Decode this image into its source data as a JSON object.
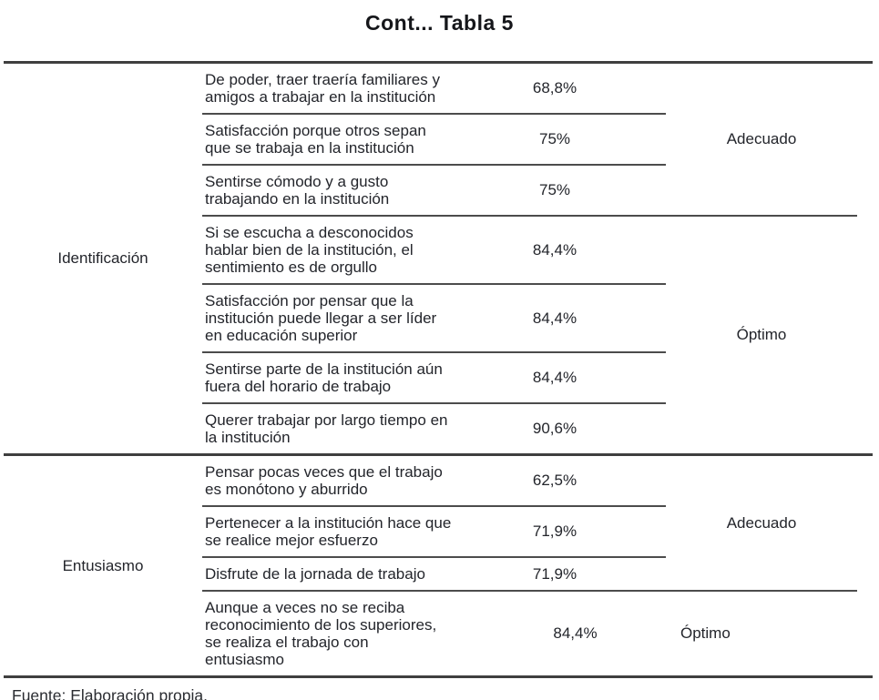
{
  "page": {
    "title": "Cont... Tabla 5",
    "source_note": "Fuente: Elaboración propia."
  },
  "colors": {
    "text": "#23252b",
    "rule_thick": "#3f3f3f",
    "rule_thin": "#4c4c4c",
    "background": "#ffffff"
  },
  "table": {
    "sections": [
      {
        "category": "Identificación",
        "groups": [
          {
            "rating": "Adecuado",
            "rows": [
              {
                "text": "De poder, traer traería familiares y\namigos a trabajar en la institución",
                "pct": "68,8%"
              },
              {
                "text": "Satisfacción porque otros sepan\nque se trabaja en la institución",
                "pct": "75%"
              },
              {
                "text": "Sentirse cómodo y a gusto\ntrabajando en la institución",
                "pct": "75%"
              }
            ]
          },
          {
            "rating": "Óptimo",
            "rows": [
              {
                "text": "Si se escucha a desconocidos\nhablar bien de la institución, el\nsentimiento es de orgullo",
                "pct": "84,4%"
              },
              {
                "text": "Satisfacción por pensar que la\ninstitución puede llegar a ser líder\nen educación superior",
                "pct": "84,4%"
              },
              {
                "text": "Sentirse parte de la institución aún\nfuera del horario de trabajo",
                "pct": "84,4%"
              },
              {
                "text": "Querer trabajar por largo tiempo en\nla institución",
                "pct": "90,6%"
              }
            ]
          }
        ]
      },
      {
        "category": "Entusiasmo",
        "groups": [
          {
            "rating": "Adecuado",
            "rows": [
              {
                "text": "Pensar pocas veces que el trabajo\nes monótono y aburrido",
                "pct": "62,5%"
              },
              {
                "text": "Pertenecer a la institución hace que\nse realice mejor esfuerzo",
                "pct": "71,9%"
              },
              {
                "text": "Disfrute de la jornada de trabajo",
                "pct": "71,9%"
              }
            ]
          },
          {
            "rating": "Óptimo",
            "rows": [
              {
                "text": "Aunque a veces no se reciba\nreconocimiento de los superiores,\nse realiza el  trabajo con\nentusiasmo",
                "pct": "84,4%"
              }
            ]
          }
        ]
      }
    ]
  }
}
